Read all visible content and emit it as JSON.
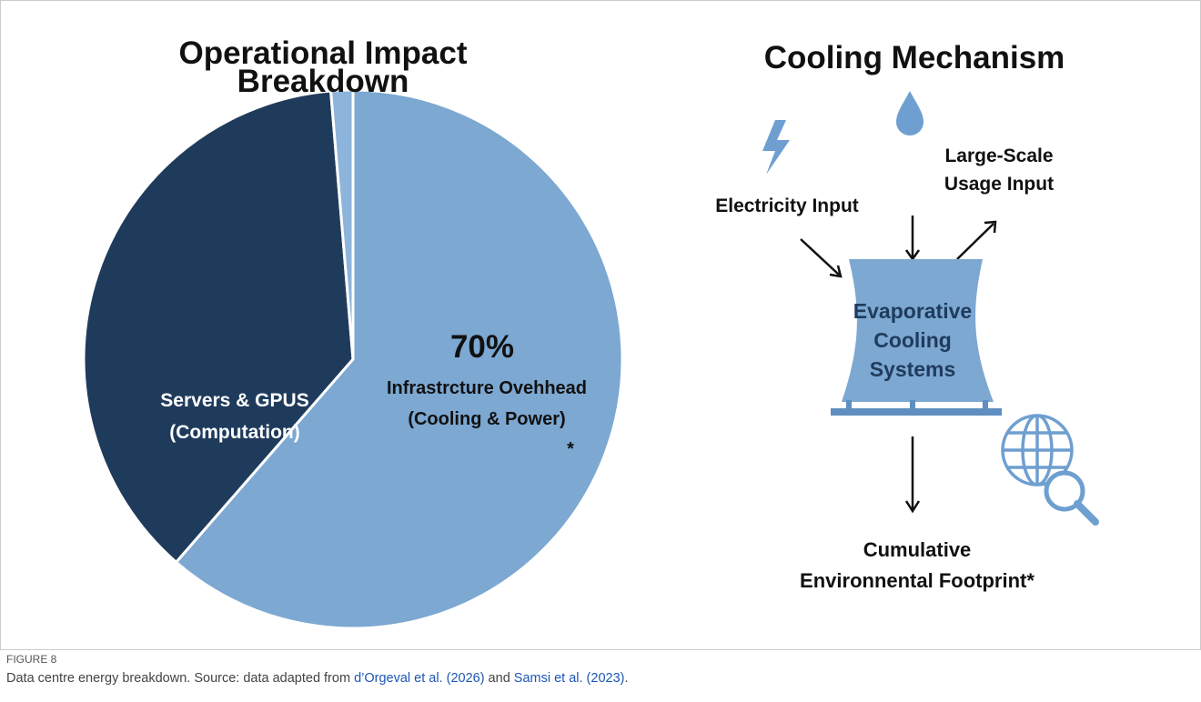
{
  "chart_data": {
    "type": "pie",
    "title": "Operational Impact Breakdown",
    "categories": [
      "Infrastrcture Ovehhead (Cooling & Power)",
      "Servers & GPUS (Computation)",
      null
    ],
    "values": [
      70,
      42.5,
      1.5
    ],
    "value_labels": [
      "70%",
      null,
      null
    ],
    "colors": [
      "#7ca8d2",
      "#1f3b5c",
      "#8db4da"
    ],
    "annotation": "*"
  },
  "diagram": {
    "title": "Cooling Mechanism",
    "nodes": [
      {
        "label": "Electricity Input"
      },
      {
        "label": "Large-Scale Usage Input"
      },
      {
        "label": "Evaporative Cooling Systems"
      },
      {
        "label": "Cumulative Environnental Footprint*"
      }
    ]
  },
  "caption": {
    "label": "FIGURE 8",
    "text": "Data centre energy breakdown. Source: data adapted from ",
    "link1": "d’Orgeval et al. (2026)",
    "joiner": " and ",
    "link2": "Samsi et al. (2023)",
    "end": "."
  }
}
